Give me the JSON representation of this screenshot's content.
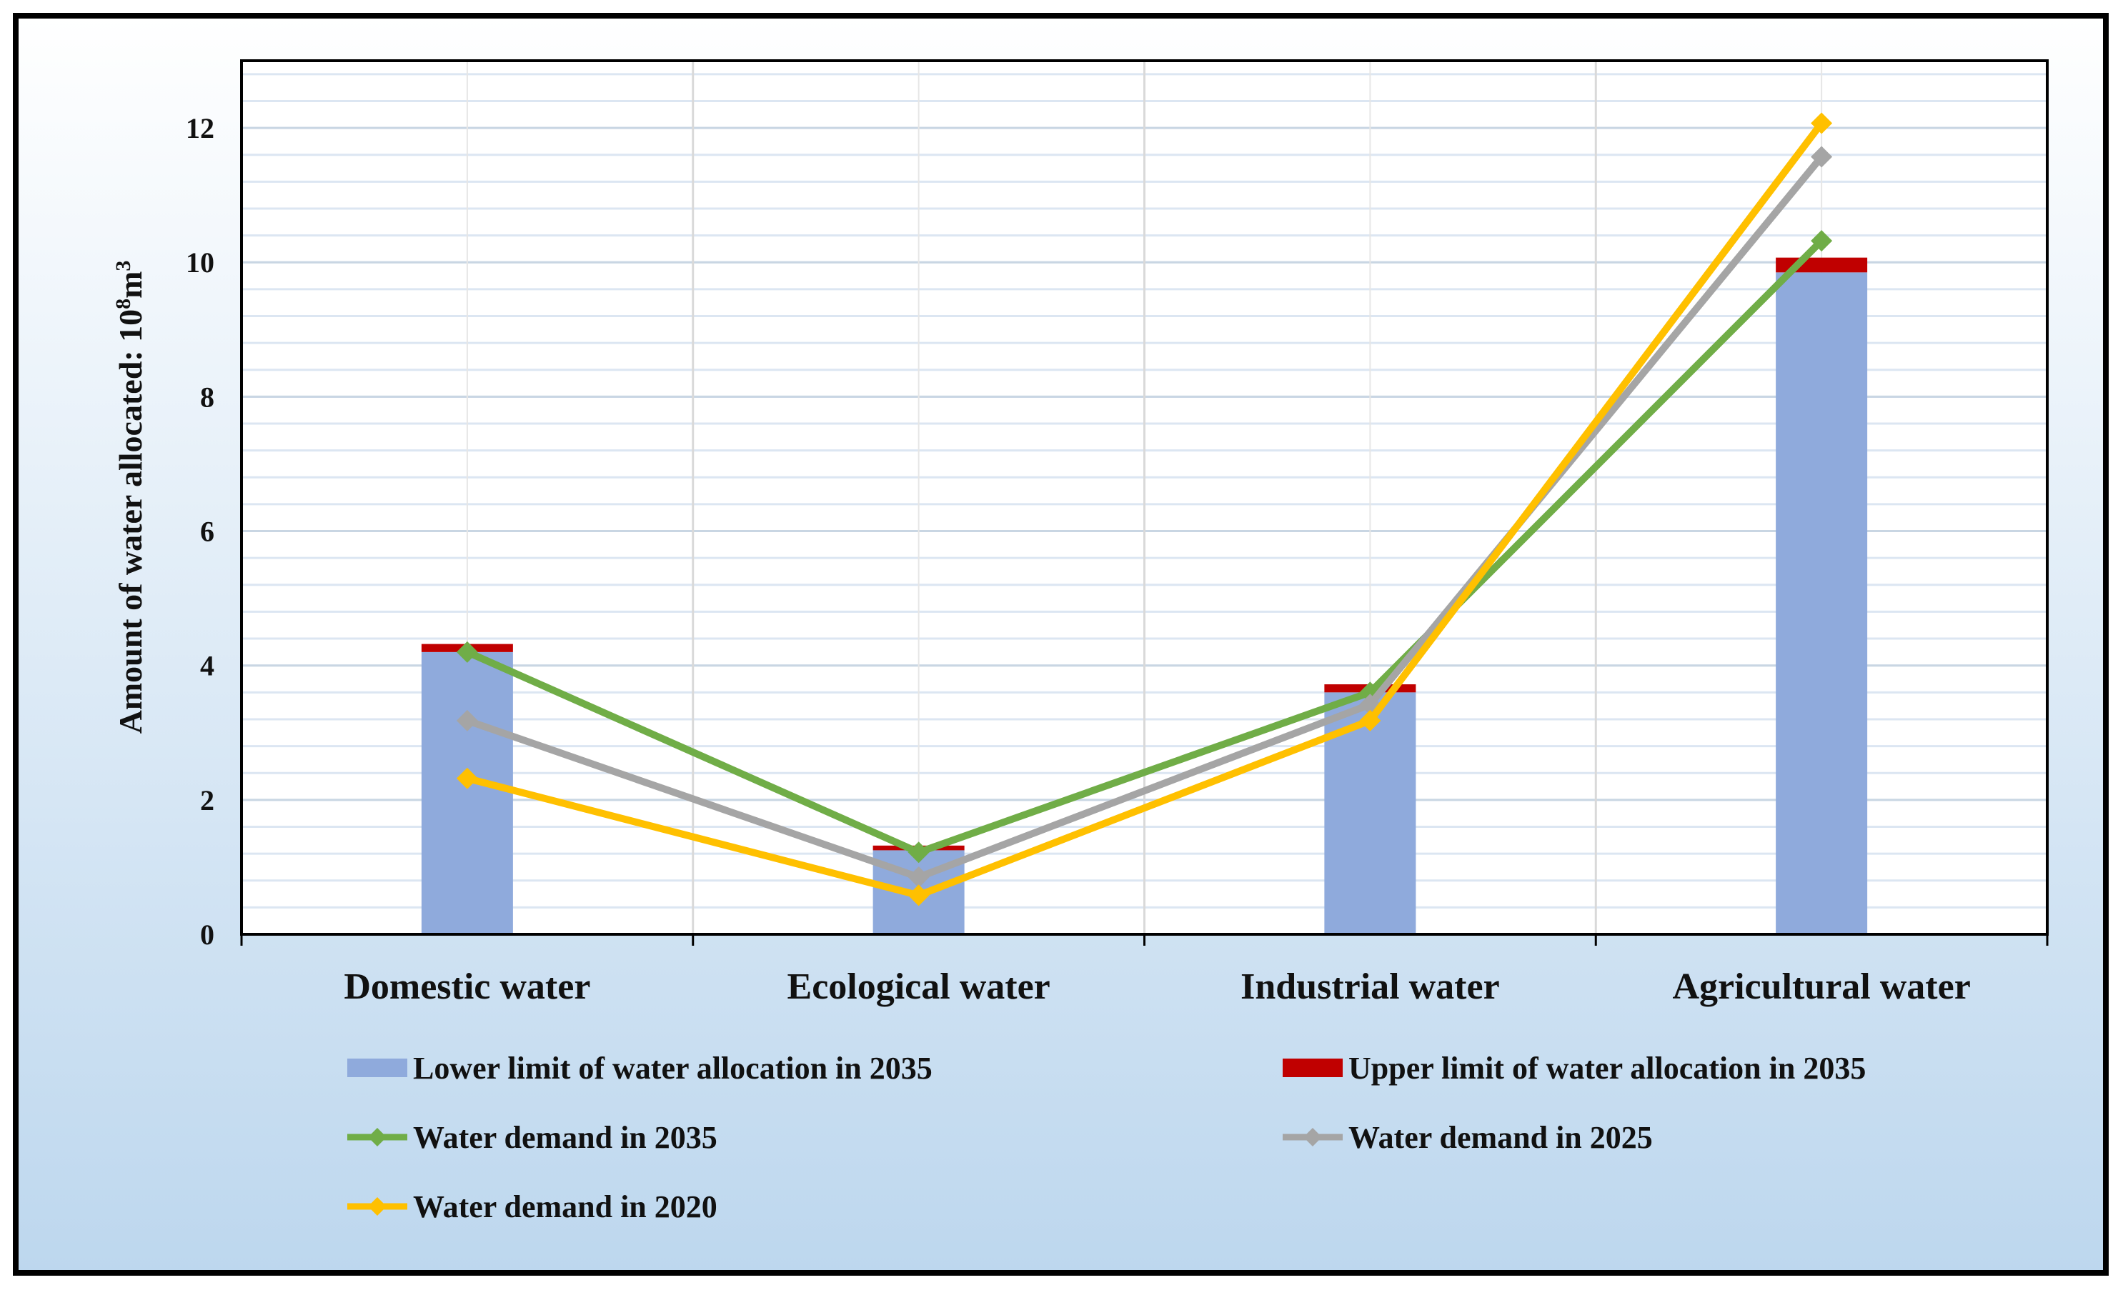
{
  "chart_data": {
    "type": "bar",
    "title": "",
    "xlabel": "",
    "ylabel": "Amount of water allocated: 10",
    "ylabel_superscript": "8",
    "ylabel_unit": "m",
    "ylabel_unit_superscript": "3",
    "ylim": [
      0,
      13
    ],
    "yticks": [
      0,
      2,
      4,
      6,
      8,
      10,
      12
    ],
    "grid": true,
    "legend_position": "bottom",
    "categories": [
      "Domestic water",
      "Ecological water",
      "Industrial water",
      "Agricultural water"
    ],
    "bar_series": [
      {
        "name": "Lower limit of water allocation in 2035",
        "values": [
          4.2,
          1.25,
          3.6,
          9.85
        ],
        "color": "#8faadc"
      },
      {
        "name": "Upper limit of water allocation in 2035",
        "values": [
          4.32,
          1.32,
          3.72,
          10.07
        ],
        "color": "#c00000"
      }
    ],
    "line_series": [
      {
        "name": "Water demand in 2035",
        "values": [
          4.2,
          1.22,
          3.6,
          10.32
        ],
        "color": "#70ad47"
      },
      {
        "name": "Water demand in 2025",
        "values": [
          3.18,
          0.85,
          3.42,
          11.57
        ],
        "color": "#a5a5a5"
      },
      {
        "name": "Water demand in 2020",
        "values": [
          2.32,
          0.58,
          3.18,
          12.07
        ],
        "color": "#ffc000"
      }
    ]
  },
  "colors": {
    "frame_border": "#000000",
    "background_top": "#ffffff",
    "background_bottom": "#bdd7ee",
    "plot_background": "#ffffff",
    "minor_grid": "#dce6f2",
    "vertical_grid": "#d9d9d9"
  }
}
